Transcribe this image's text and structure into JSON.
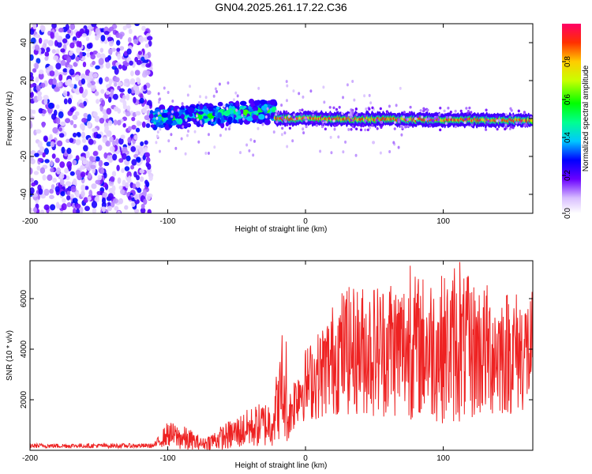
{
  "title": "GN04.2025.261.17.22.C36",
  "colors": {
    "series": "#ee2222",
    "frame": "#000000"
  },
  "chart_data": [
    {
      "type": "heatmap",
      "xlabel": "Height of straight line (km)",
      "ylabel": "Frequency (Hz)",
      "xlim": [
        -200,
        165
      ],
      "ylim": [
        -50,
        50
      ],
      "xticks": [
        -200,
        -100,
        0,
        100
      ],
      "yticks": [
        40,
        20,
        0,
        -20,
        -40
      ],
      "colorbar": {
        "label": "Normalized spectral amplitude",
        "range": [
          0,
          1
        ],
        "ticks": [
          "0.0",
          "0.2",
          "0.4",
          "0.6",
          "0.8"
        ]
      },
      "regions": [
        {
          "x_from": -200,
          "x_to": -112,
          "description_value": "noise",
          "freq_spread": [
            -50,
            50
          ],
          "amplitude": [
            0.05,
            0.3
          ]
        },
        {
          "x_from": -112,
          "x_to": -22,
          "freq_center": [
            0,
            4
          ],
          "freq_halfwidth": 6,
          "amplitude": [
            0.2,
            0.65
          ]
        },
        {
          "x_from": -22,
          "x_to": 165,
          "freq_center": [
            0,
            -1
          ],
          "freq_halfwidth": 2,
          "amplitude": [
            0.5,
            1.0
          ]
        }
      ]
    },
    {
      "type": "line",
      "xlabel": "Height of straight line (km)",
      "ylabel": "SNR (10 * v/v)",
      "xlim": [
        -200,
        165
      ],
      "ylim": [
        0,
        7500
      ],
      "xticks": [
        -200,
        -100,
        0,
        100
      ],
      "yticks": [
        2000,
        4000,
        6000
      ],
      "envelope": [
        {
          "x": -200,
          "mean": 180,
          "spread": 90
        },
        {
          "x": -110,
          "mean": 180,
          "spread": 90
        },
        {
          "x": -100,
          "mean": 650,
          "spread": 500
        },
        {
          "x": -85,
          "mean": 400,
          "spread": 500
        },
        {
          "x": -75,
          "mean": 250,
          "spread": 220
        },
        {
          "x": -55,
          "mean": 600,
          "spread": 600
        },
        {
          "x": -40,
          "mean": 900,
          "spread": 800
        },
        {
          "x": -25,
          "mean": 1100,
          "spread": 1000
        },
        {
          "x": -17,
          "mean": 2300,
          "spread": 1800
        },
        {
          "x": -13,
          "mean": 1200,
          "spread": 900
        },
        {
          "x": -5,
          "mean": 2400,
          "spread": 1300
        },
        {
          "x": 10,
          "mean": 3000,
          "spread": 1800
        },
        {
          "x": 25,
          "mean": 3900,
          "spread": 2500
        },
        {
          "x": 50,
          "mean": 4000,
          "spread": 2700
        },
        {
          "x": 80,
          "mean": 4100,
          "spread": 2900
        },
        {
          "x": 110,
          "mean": 4000,
          "spread": 3000
        },
        {
          "x": 140,
          "mean": 3900,
          "spread": 2600
        },
        {
          "x": 165,
          "mean": 3900,
          "spread": 2400
        }
      ],
      "peaks": [
        {
          "x": 112,
          "y": 7450
        },
        {
          "x": 76,
          "y": 7300
        },
        {
          "x": 108,
          "y": 7200
        },
        {
          "x": 118,
          "y": 6900
        },
        {
          "x": -17,
          "y": 4550
        },
        {
          "x": -14,
          "y": 4300
        },
        {
          "x": 30,
          "y": 6300
        },
        {
          "x": 62,
          "y": 6500
        }
      ]
    }
  ]
}
